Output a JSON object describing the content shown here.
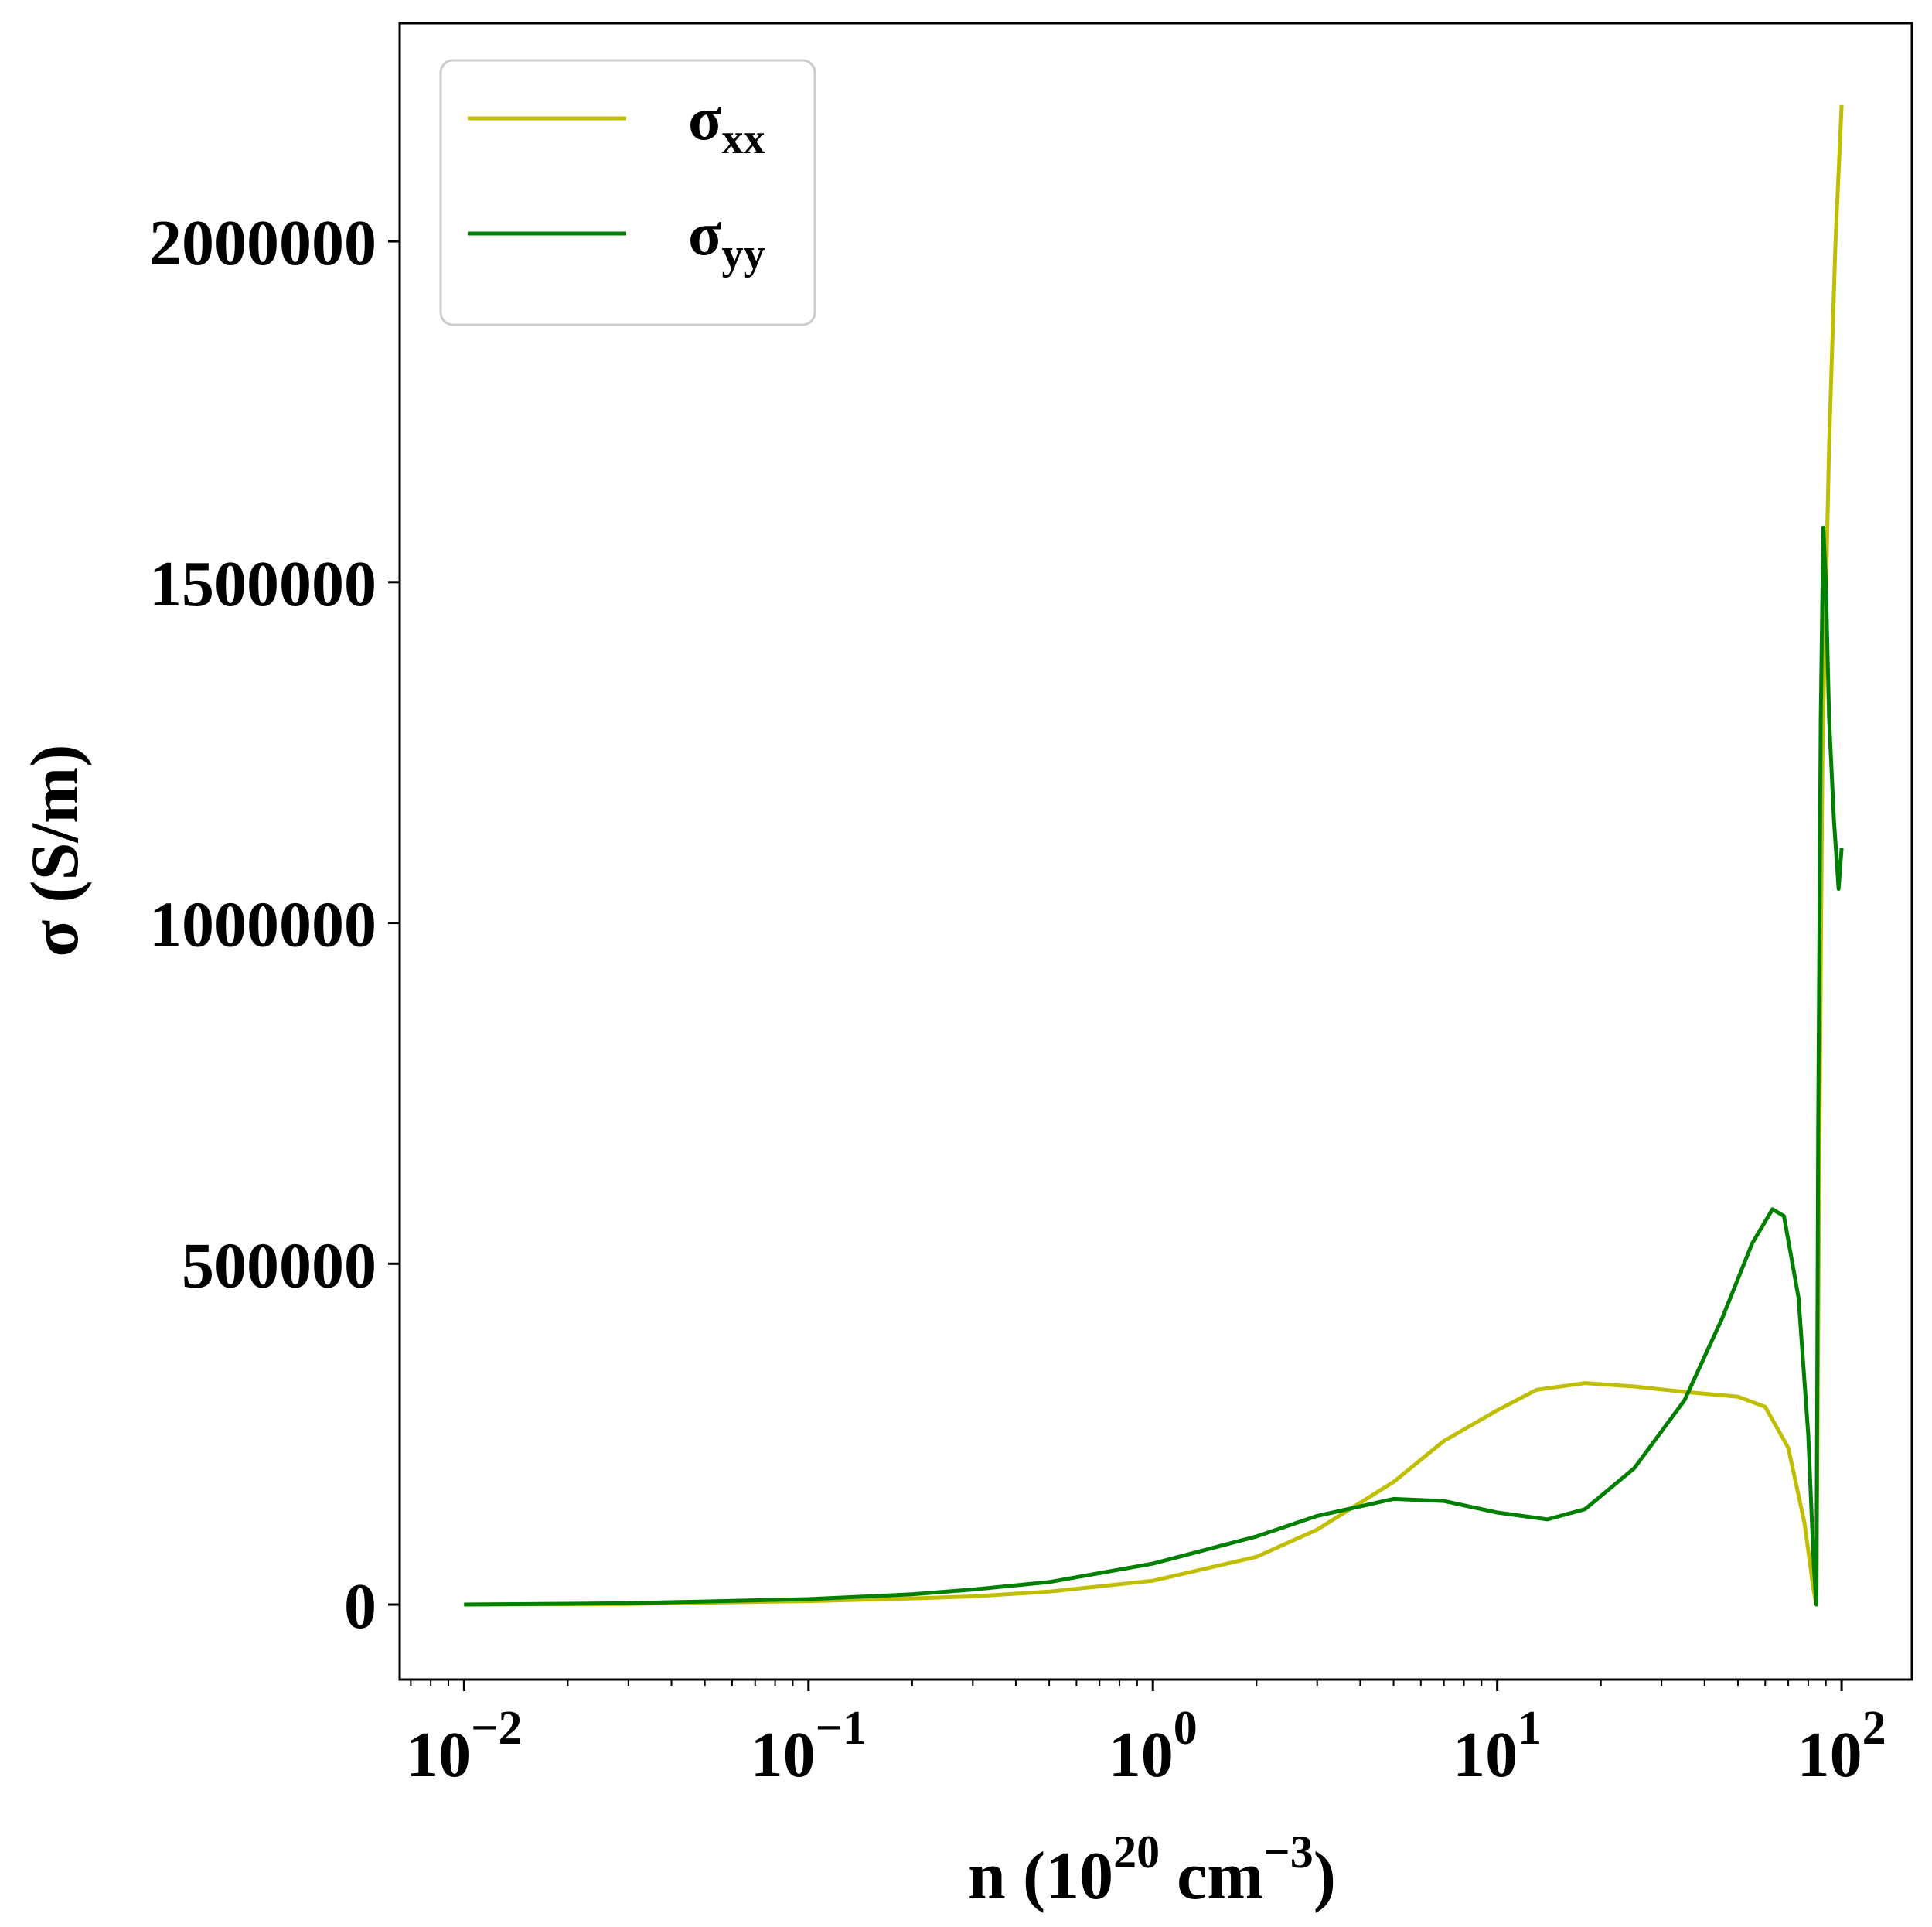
{
  "chart_data": {
    "type": "line",
    "xlabel": {
      "base": "n (10",
      "exp1": "20",
      "mid": " cm",
      "exp2": "−3",
      "end": ")"
    },
    "ylabel": "σ (S/m)",
    "x_scale": "log",
    "xlim": [
      0.0065,
      160
    ],
    "ylim": [
      -110000,
      2320000
    ],
    "x_ticks": [
      {
        "value": 0.01,
        "base": "10",
        "exp": "−2"
      },
      {
        "value": 0.1,
        "base": "10",
        "exp": "−1"
      },
      {
        "value": 1,
        "base": "10",
        "exp": "0"
      },
      {
        "value": 10,
        "base": "10",
        "exp": "1"
      },
      {
        "value": 100,
        "base": "10",
        "exp": "2"
      }
    ],
    "y_ticks": [
      {
        "value": 0,
        "label": "0"
      },
      {
        "value": 500000,
        "label": "500000"
      },
      {
        "value": 1000000,
        "label": "1000000"
      },
      {
        "value": 1500000,
        "label": "1500000"
      },
      {
        "value": 2000000,
        "label": "2000000"
      }
    ],
    "grid": false,
    "legend": {
      "position": "top-left"
    },
    "series": [
      {
        "name": "σ",
        "subscript": "xx",
        "color": "#bfbf00",
        "points": [
          [
            0.01,
            0
          ],
          [
            0.03,
            1000
          ],
          [
            0.1,
            5000
          ],
          [
            0.2,
            9000
          ],
          [
            0.3,
            12000
          ],
          [
            0.5,
            19000
          ],
          [
            1,
            35000
          ],
          [
            2,
            70000
          ],
          [
            3,
            110000
          ],
          [
            5,
            180000
          ],
          [
            7,
            240000
          ],
          [
            10,
            285000
          ],
          [
            13,
            315000
          ],
          [
            18,
            325000
          ],
          [
            25,
            320000
          ],
          [
            35,
            312000
          ],
          [
            50,
            305000
          ],
          [
            60,
            290000
          ],
          [
            70,
            230000
          ],
          [
            78,
            120000
          ],
          [
            83,
            20000
          ],
          [
            84.5,
            0
          ],
          [
            86,
            600000
          ],
          [
            88,
            1250000
          ],
          [
            92,
            1700000
          ],
          [
            96,
            2000000
          ],
          [
            100,
            2200000
          ]
        ]
      },
      {
        "name": "σ",
        "subscript": "yy",
        "color": "#008000",
        "points": [
          [
            0.01,
            0
          ],
          [
            0.03,
            2000
          ],
          [
            0.1,
            8000
          ],
          [
            0.2,
            15000
          ],
          [
            0.3,
            22000
          ],
          [
            0.5,
            33000
          ],
          [
            1,
            60000
          ],
          [
            2,
            100000
          ],
          [
            3,
            130000
          ],
          [
            5,
            155000
          ],
          [
            7,
            152000
          ],
          [
            10,
            135000
          ],
          [
            14,
            125000
          ],
          [
            18,
            140000
          ],
          [
            25,
            200000
          ],
          [
            35,
            300000
          ],
          [
            45,
            420000
          ],
          [
            55,
            530000
          ],
          [
            63,
            580000
          ],
          [
            68,
            570000
          ],
          [
            75,
            450000
          ],
          [
            80,
            250000
          ],
          [
            83,
            60000
          ],
          [
            84.5,
            0
          ],
          [
            85.5,
            700000
          ],
          [
            87,
            1300000
          ],
          [
            88.5,
            1580000
          ],
          [
            90,
            1500000
          ],
          [
            92,
            1300000
          ],
          [
            95,
            1150000
          ],
          [
            98,
            1050000
          ],
          [
            100,
            1110000
          ]
        ]
      }
    ]
  }
}
